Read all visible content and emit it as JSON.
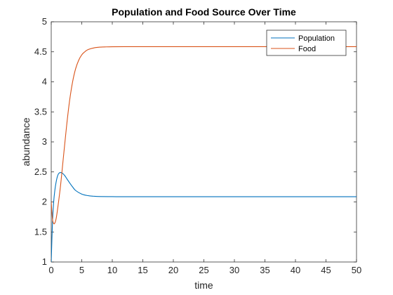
{
  "chart_data": {
    "type": "line",
    "title": "Population and Food Source Over Time",
    "xlabel": "time",
    "ylabel": "abundance",
    "xlim": [
      0,
      50
    ],
    "ylim": [
      1,
      5
    ],
    "xticks": [
      0,
      5,
      10,
      15,
      20,
      25,
      30,
      35,
      40,
      45,
      50
    ],
    "yticks": [
      1,
      1.5,
      2,
      2.5,
      3,
      3.5,
      4,
      4.5,
      5
    ],
    "xtick_labels": [
      "0",
      "5",
      "10",
      "15",
      "20",
      "25",
      "30",
      "35",
      "40",
      "45",
      "50"
    ],
    "ytick_labels": [
      "1",
      "1.5",
      "2",
      "2.5",
      "3",
      "3.5",
      "4",
      "4.5",
      "5"
    ],
    "grid": false,
    "legend_position": "top-right",
    "series": [
      {
        "name": "Population",
        "color": "#0072BD",
        "x": [
          0,
          0.2,
          0.4,
          0.6,
          0.8,
          1.0,
          1.2,
          1.5,
          1.8,
          2.2,
          2.6,
          3.0,
          3.5,
          4.0,
          5.0,
          6.0,
          7.0,
          8.0,
          10,
          12,
          15,
          20,
          30,
          40,
          50
        ],
        "y": [
          1.0,
          1.65,
          2.0,
          2.2,
          2.33,
          2.42,
          2.47,
          2.49,
          2.48,
          2.44,
          2.38,
          2.32,
          2.25,
          2.19,
          2.13,
          2.105,
          2.095,
          2.09,
          2.088,
          2.087,
          2.087,
          2.087,
          2.087,
          2.087,
          2.087
        ]
      },
      {
        "name": "Food",
        "color": "#D95319",
        "x": [
          0,
          0.2,
          0.4,
          0.6,
          0.8,
          1.0,
          1.5,
          2.0,
          2.5,
          3.0,
          3.5,
          4.0,
          4.5,
          5.0,
          5.5,
          6.0,
          7.0,
          8.0,
          9.0,
          10,
          12,
          15,
          20,
          30,
          40,
          50
        ],
        "y": [
          2.0,
          1.72,
          1.64,
          1.65,
          1.72,
          1.85,
          2.25,
          2.75,
          3.25,
          3.68,
          4.0,
          4.22,
          4.36,
          4.45,
          4.5,
          4.535,
          4.565,
          4.578,
          4.582,
          4.584,
          4.585,
          4.585,
          4.585,
          4.585,
          4.585,
          4.585
        ]
      }
    ]
  }
}
